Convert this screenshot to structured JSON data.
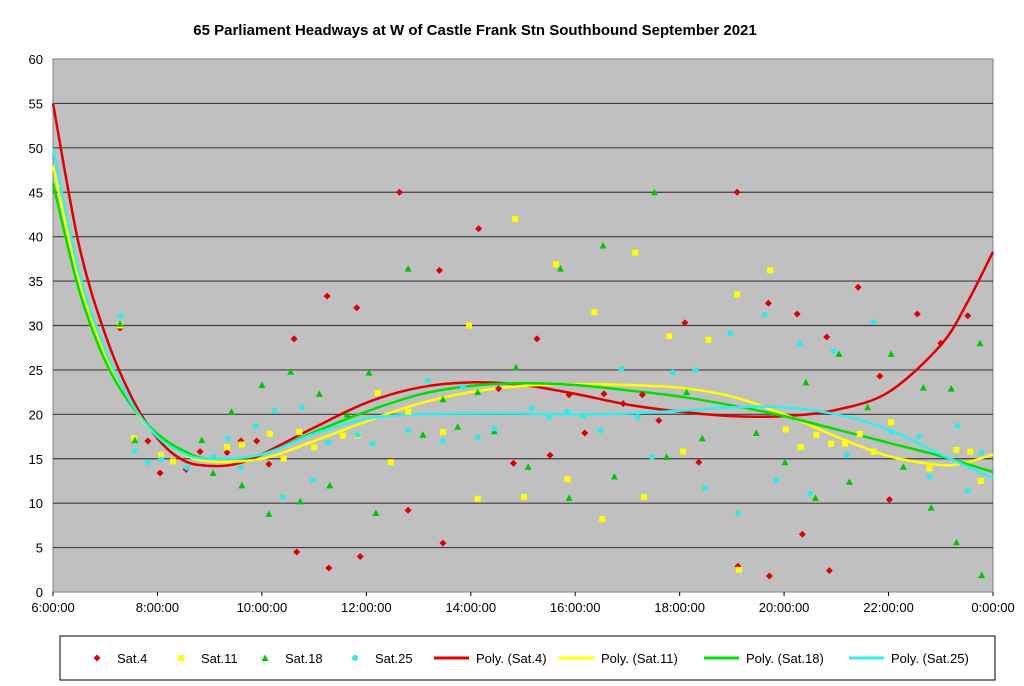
{
  "chart_data": {
    "type": "scatter",
    "title": "65 Parliament Headways at W of Castle Frank Stn Southbound September 2021",
    "xlabel": "",
    "ylabel": "",
    "xlim": [
      "6:00:00",
      "0:00:00"
    ],
    "ylim": [
      0,
      60
    ],
    "x_ticks": [
      "6:00:00",
      "8:00:00",
      "10:00:00",
      "12:00:00",
      "14:00:00",
      "16:00:00",
      "18:00:00",
      "20:00:00",
      "22:00:00",
      "0:00:00"
    ],
    "y_ticks": [
      0,
      5,
      10,
      15,
      20,
      25,
      30,
      35,
      40,
      45,
      50,
      55,
      60
    ],
    "grid": "horizontal",
    "legend_placement": "bottom",
    "plot_background": "#c0c0c0",
    "series": [
      {
        "name": "Sat.4",
        "marker": "diamond",
        "color": "#e00000",
        "points": [
          [
            "7:17",
            29.7
          ],
          [
            "7:49",
            17.0
          ],
          [
            "8:03",
            13.4
          ],
          [
            "8:33",
            13.8
          ],
          [
            "8:49",
            15.8
          ],
          [
            "9:20",
            15.7
          ],
          [
            "9:36",
            17.0
          ],
          [
            "9:54",
            17.0
          ],
          [
            "10:08",
            14.4
          ],
          [
            "10:37",
            28.5
          ],
          [
            "10:40",
            4.5
          ],
          [
            "11:15",
            33.3
          ],
          [
            "11:17",
            2.7
          ],
          [
            "11:49",
            32.0
          ],
          [
            "11:53",
            4.0
          ],
          [
            "12:38",
            45.0
          ],
          [
            "12:48",
            9.2
          ],
          [
            "13:24",
            36.2
          ],
          [
            "13:28",
            5.5
          ],
          [
            "14:09",
            40.9
          ],
          [
            "14:32",
            22.9
          ],
          [
            "14:49",
            14.5
          ],
          [
            "15:16",
            28.5
          ],
          [
            "15:31",
            15.4
          ],
          [
            "15:53",
            22.2
          ],
          [
            "16:11",
            17.9
          ],
          [
            "16:33",
            22.3
          ],
          [
            "16:55",
            21.2
          ],
          [
            "17:17",
            22.2
          ],
          [
            "17:36",
            19.3
          ],
          [
            "18:06",
            30.3
          ],
          [
            "18:22",
            14.6
          ],
          [
            "19:06",
            45.0
          ],
          [
            "19:07",
            2.9
          ],
          [
            "19:42",
            32.5
          ],
          [
            "19:43",
            1.8
          ],
          [
            "20:15",
            31.3
          ],
          [
            "20:21",
            6.5
          ],
          [
            "20:49",
            28.7
          ],
          [
            "20:52",
            2.4
          ],
          [
            "21:25",
            34.3
          ],
          [
            "21:50",
            24.3
          ],
          [
            "22:01",
            10.4
          ],
          [
            "22:33",
            31.3
          ],
          [
            "23:00",
            28.0
          ],
          [
            "23:31",
            31.1
          ]
        ]
      },
      {
        "name": "Sat.11",
        "marker": "square",
        "color": "#ffff00",
        "points": [
          [
            "7:17",
            30.0
          ],
          [
            "7:33",
            17.3
          ],
          [
            "8:04",
            15.4
          ],
          [
            "8:18",
            14.7
          ],
          [
            "9:20",
            16.3
          ],
          [
            "9:37",
            16.6
          ],
          [
            "10:09",
            17.8
          ],
          [
            "10:25",
            15.0
          ],
          [
            "10:43",
            18.0
          ],
          [
            "11:00",
            16.3
          ],
          [
            "11:33",
            17.6
          ],
          [
            "11:50",
            17.6
          ],
          [
            "12:13",
            22.4
          ],
          [
            "12:28",
            14.6
          ],
          [
            "12:48",
            20.3
          ],
          [
            "13:28",
            18.0
          ],
          [
            "13:58",
            30.0
          ],
          [
            "14:08",
            10.5
          ],
          [
            "14:51",
            42.0
          ],
          [
            "15:01",
            10.7
          ],
          [
            "15:38",
            36.9
          ],
          [
            "15:51",
            12.7
          ],
          [
            "16:22",
            31.5
          ],
          [
            "16:31",
            8.2
          ],
          [
            "17:09",
            38.2
          ],
          [
            "17:19",
            10.7
          ],
          [
            "17:48",
            28.8
          ],
          [
            "18:04",
            15.8
          ],
          [
            "18:33",
            28.4
          ],
          [
            "19:06",
            33.5
          ],
          [
            "19:08",
            2.5
          ],
          [
            "19:44",
            36.2
          ],
          [
            "20:02",
            18.3
          ],
          [
            "20:19",
            16.3
          ],
          [
            "20:37",
            17.7
          ],
          [
            "20:54",
            16.7
          ],
          [
            "21:10",
            16.7
          ],
          [
            "21:27",
            17.8
          ],
          [
            "21:43",
            15.8
          ],
          [
            "22:03",
            19.1
          ],
          [
            "22:47",
            13.9
          ],
          [
            "23:18",
            16.0
          ],
          [
            "23:34",
            15.8
          ],
          [
            "23:46",
            12.5
          ]
        ]
      },
      {
        "name": "Sat.18",
        "marker": "triangle",
        "color": "#00c800",
        "points": [
          [
            "7:17",
            30.2
          ],
          [
            "7:34",
            17.1
          ],
          [
            "8:51",
            17.1
          ],
          [
            "9:04",
            13.4
          ],
          [
            "9:25",
            20.3
          ],
          [
            "9:37",
            12.0
          ],
          [
            "10:00",
            23.3
          ],
          [
            "10:08",
            8.8
          ],
          [
            "10:33",
            24.8
          ],
          [
            "10:44",
            10.2
          ],
          [
            "11:06",
            22.3
          ],
          [
            "11:18",
            12.0
          ],
          [
            "11:38",
            20.0
          ],
          [
            "12:03",
            24.7
          ],
          [
            "12:11",
            8.9
          ],
          [
            "12:48",
            36.4
          ],
          [
            "13:05",
            17.7
          ],
          [
            "13:28",
            21.7
          ],
          [
            "13:45",
            18.6
          ],
          [
            "14:08",
            22.5
          ],
          [
            "14:27",
            18.1
          ],
          [
            "14:52",
            25.3
          ],
          [
            "15:06",
            14.1
          ],
          [
            "15:43",
            36.4
          ],
          [
            "15:53",
            10.6
          ],
          [
            "16:32",
            39.0
          ],
          [
            "16:45",
            13.0
          ],
          [
            "17:31",
            45.0
          ],
          [
            "17:45",
            15.2
          ],
          [
            "18:08",
            22.5
          ],
          [
            "18:26",
            17.3
          ],
          [
            "19:28",
            17.9
          ],
          [
            "20:01",
            14.6
          ],
          [
            "20:25",
            23.6
          ],
          [
            "20:36",
            10.6
          ],
          [
            "21:03",
            26.8
          ],
          [
            "21:15",
            12.4
          ],
          [
            "21:36",
            20.8
          ],
          [
            "22:03",
            26.8
          ],
          [
            "22:17",
            14.1
          ],
          [
            "22:40",
            23.0
          ],
          [
            "22:49",
            9.5
          ],
          [
            "23:12",
            22.9
          ],
          [
            "23:18",
            5.6
          ],
          [
            "23:45",
            28.0
          ],
          [
            "23:47",
            1.9
          ]
        ]
      },
      {
        "name": "Sat.25",
        "marker": "circle",
        "color": "#33e8e8",
        "points": [
          [
            "7:18",
            31.1
          ],
          [
            "7:34",
            15.9
          ],
          [
            "7:49",
            14.6
          ],
          [
            "8:04",
            14.9
          ],
          [
            "8:34",
            14.0
          ],
          [
            "9:04",
            15.2
          ],
          [
            "9:21",
            17.3
          ],
          [
            "9:36",
            14.0
          ],
          [
            "9:53",
            18.7
          ],
          [
            "10:15",
            20.4
          ],
          [
            "10:24",
            10.7
          ],
          [
            "10:46",
            20.8
          ],
          [
            "10:59",
            12.6
          ],
          [
            "11:16",
            16.8
          ],
          [
            "11:50",
            17.7
          ],
          [
            "12:07",
            16.7
          ],
          [
            "12:48",
            18.2
          ],
          [
            "13:11",
            23.8
          ],
          [
            "13:28",
            17.0
          ],
          [
            "13:51",
            23.1
          ],
          [
            "14:08",
            17.4
          ],
          [
            "14:27",
            18.4
          ],
          [
            "15:10",
            20.7
          ],
          [
            "15:30",
            19.7
          ],
          [
            "15:51",
            20.3
          ],
          [
            "16:09",
            19.8
          ],
          [
            "16:29",
            18.2
          ],
          [
            "16:53",
            25.1
          ],
          [
            "17:12",
            19.7
          ],
          [
            "17:28",
            15.2
          ],
          [
            "17:52",
            24.7
          ],
          [
            "18:18",
            25.0
          ],
          [
            "18:29",
            11.7
          ],
          [
            "18:58",
            29.1
          ],
          [
            "19:07",
            8.9
          ],
          [
            "19:38",
            31.2
          ],
          [
            "19:51",
            12.6
          ],
          [
            "20:18",
            28.0
          ],
          [
            "20:30",
            11.1
          ],
          [
            "20:57",
            27.1
          ],
          [
            "21:12",
            15.4
          ],
          [
            "21:43",
            30.4
          ],
          [
            "22:03",
            18.0
          ],
          [
            "22:35",
            17.5
          ],
          [
            "22:47",
            13.0
          ],
          [
            "23:19",
            18.7
          ],
          [
            "23:31",
            11.4
          ],
          [
            "23:47",
            15.7
          ]
        ]
      }
    ],
    "trendlines": [
      {
        "name": "Poly. (Sat.4)",
        "color": "#e00000",
        "points": [
          [
            "6:00",
            55
          ],
          [
            "6:30",
            39
          ],
          [
            "7:00",
            29
          ],
          [
            "7:30",
            22
          ],
          [
            "8:00",
            17.3
          ],
          [
            "8:30",
            14.8
          ],
          [
            "9:00",
            14.2
          ],
          [
            "9:30",
            14.4
          ],
          [
            "10:00",
            15.5
          ],
          [
            "11:00",
            18.5
          ],
          [
            "12:00",
            21.3
          ],
          [
            "13:00",
            23
          ],
          [
            "14:00",
            23.6
          ],
          [
            "15:00",
            23.3
          ],
          [
            "16:00",
            22.3
          ],
          [
            "17:00",
            21.1
          ],
          [
            "18:00",
            20.3
          ],
          [
            "19:00",
            19.8
          ],
          [
            "20:00",
            19.8
          ],
          [
            "21:00",
            20.5
          ],
          [
            "22:00",
            22.5
          ],
          [
            "23:00",
            27.8
          ],
          [
            "23:30",
            32.5
          ],
          [
            "24:00",
            38.3
          ]
        ]
      },
      {
        "name": "Poly. (Sat.11)",
        "color": "#ffff00",
        "points": [
          [
            "6:00",
            48
          ],
          [
            "6:30",
            35
          ],
          [
            "7:00",
            26.5
          ],
          [
            "7:30",
            21
          ],
          [
            "8:00",
            17.5
          ],
          [
            "8:30",
            15.5
          ],
          [
            "9:00",
            14.7
          ],
          [
            "10:00",
            15
          ],
          [
            "11:00",
            17
          ],
          [
            "12:00",
            19.2
          ],
          [
            "13:00",
            21.2
          ],
          [
            "14:00",
            22.5
          ],
          [
            "15:00",
            23.2
          ],
          [
            "16:00",
            23.4
          ],
          [
            "17:00",
            23.3
          ],
          [
            "18:00",
            23
          ],
          [
            "19:00",
            22
          ],
          [
            "20:00",
            20
          ],
          [
            "21:00",
            17.5
          ],
          [
            "22:00",
            15.3
          ],
          [
            "23:00",
            14.3
          ],
          [
            "23:30",
            14.6
          ],
          [
            "24:00",
            15.5
          ]
        ]
      },
      {
        "name": "Poly. (Sat.18)",
        "color": "#00e000",
        "points": [
          [
            "6:00",
            46
          ],
          [
            "6:30",
            34
          ],
          [
            "7:00",
            26
          ],
          [
            "7:30",
            21
          ],
          [
            "8:00",
            17.8
          ],
          [
            "8:30",
            15.9
          ],
          [
            "9:00",
            15
          ],
          [
            "10:00",
            15.5
          ],
          [
            "11:00",
            18
          ],
          [
            "12:00",
            20.3
          ],
          [
            "13:00",
            22.2
          ],
          [
            "14:00",
            23.2
          ],
          [
            "15:00",
            23.5
          ],
          [
            "16:00",
            23.3
          ],
          [
            "17:00",
            22.7
          ],
          [
            "18:00",
            22
          ],
          [
            "19:00",
            21
          ],
          [
            "20:00",
            19.8
          ],
          [
            "21:00",
            18.3
          ],
          [
            "22:00",
            16.8
          ],
          [
            "23:00",
            15.3
          ],
          [
            "24:00",
            13.5
          ]
        ]
      },
      {
        "name": "Poly. (Sat.25)",
        "color": "#33eeee",
        "points": [
          [
            "6:00",
            50
          ],
          [
            "6:30",
            36
          ],
          [
            "7:00",
            27.3
          ],
          [
            "7:30",
            21.3
          ],
          [
            "8:00",
            17.5
          ],
          [
            "8:30",
            15.6
          ],
          [
            "9:00",
            15
          ],
          [
            "10:00",
            15.5
          ],
          [
            "11:00",
            17.8
          ],
          [
            "12:00",
            19.5
          ],
          [
            "13:00",
            20
          ],
          [
            "14:00",
            20.1
          ],
          [
            "15:00",
            20.1
          ],
          [
            "16:00",
            20
          ],
          [
            "17:00",
            20.1
          ],
          [
            "18:00",
            20.4
          ],
          [
            "19:00",
            20.8
          ],
          [
            "20:00",
            20.8
          ],
          [
            "21:00",
            20
          ],
          [
            "22:00",
            18.3
          ],
          [
            "23:00",
            15.5
          ],
          [
            "24:00",
            12.8
          ]
        ]
      }
    ]
  }
}
